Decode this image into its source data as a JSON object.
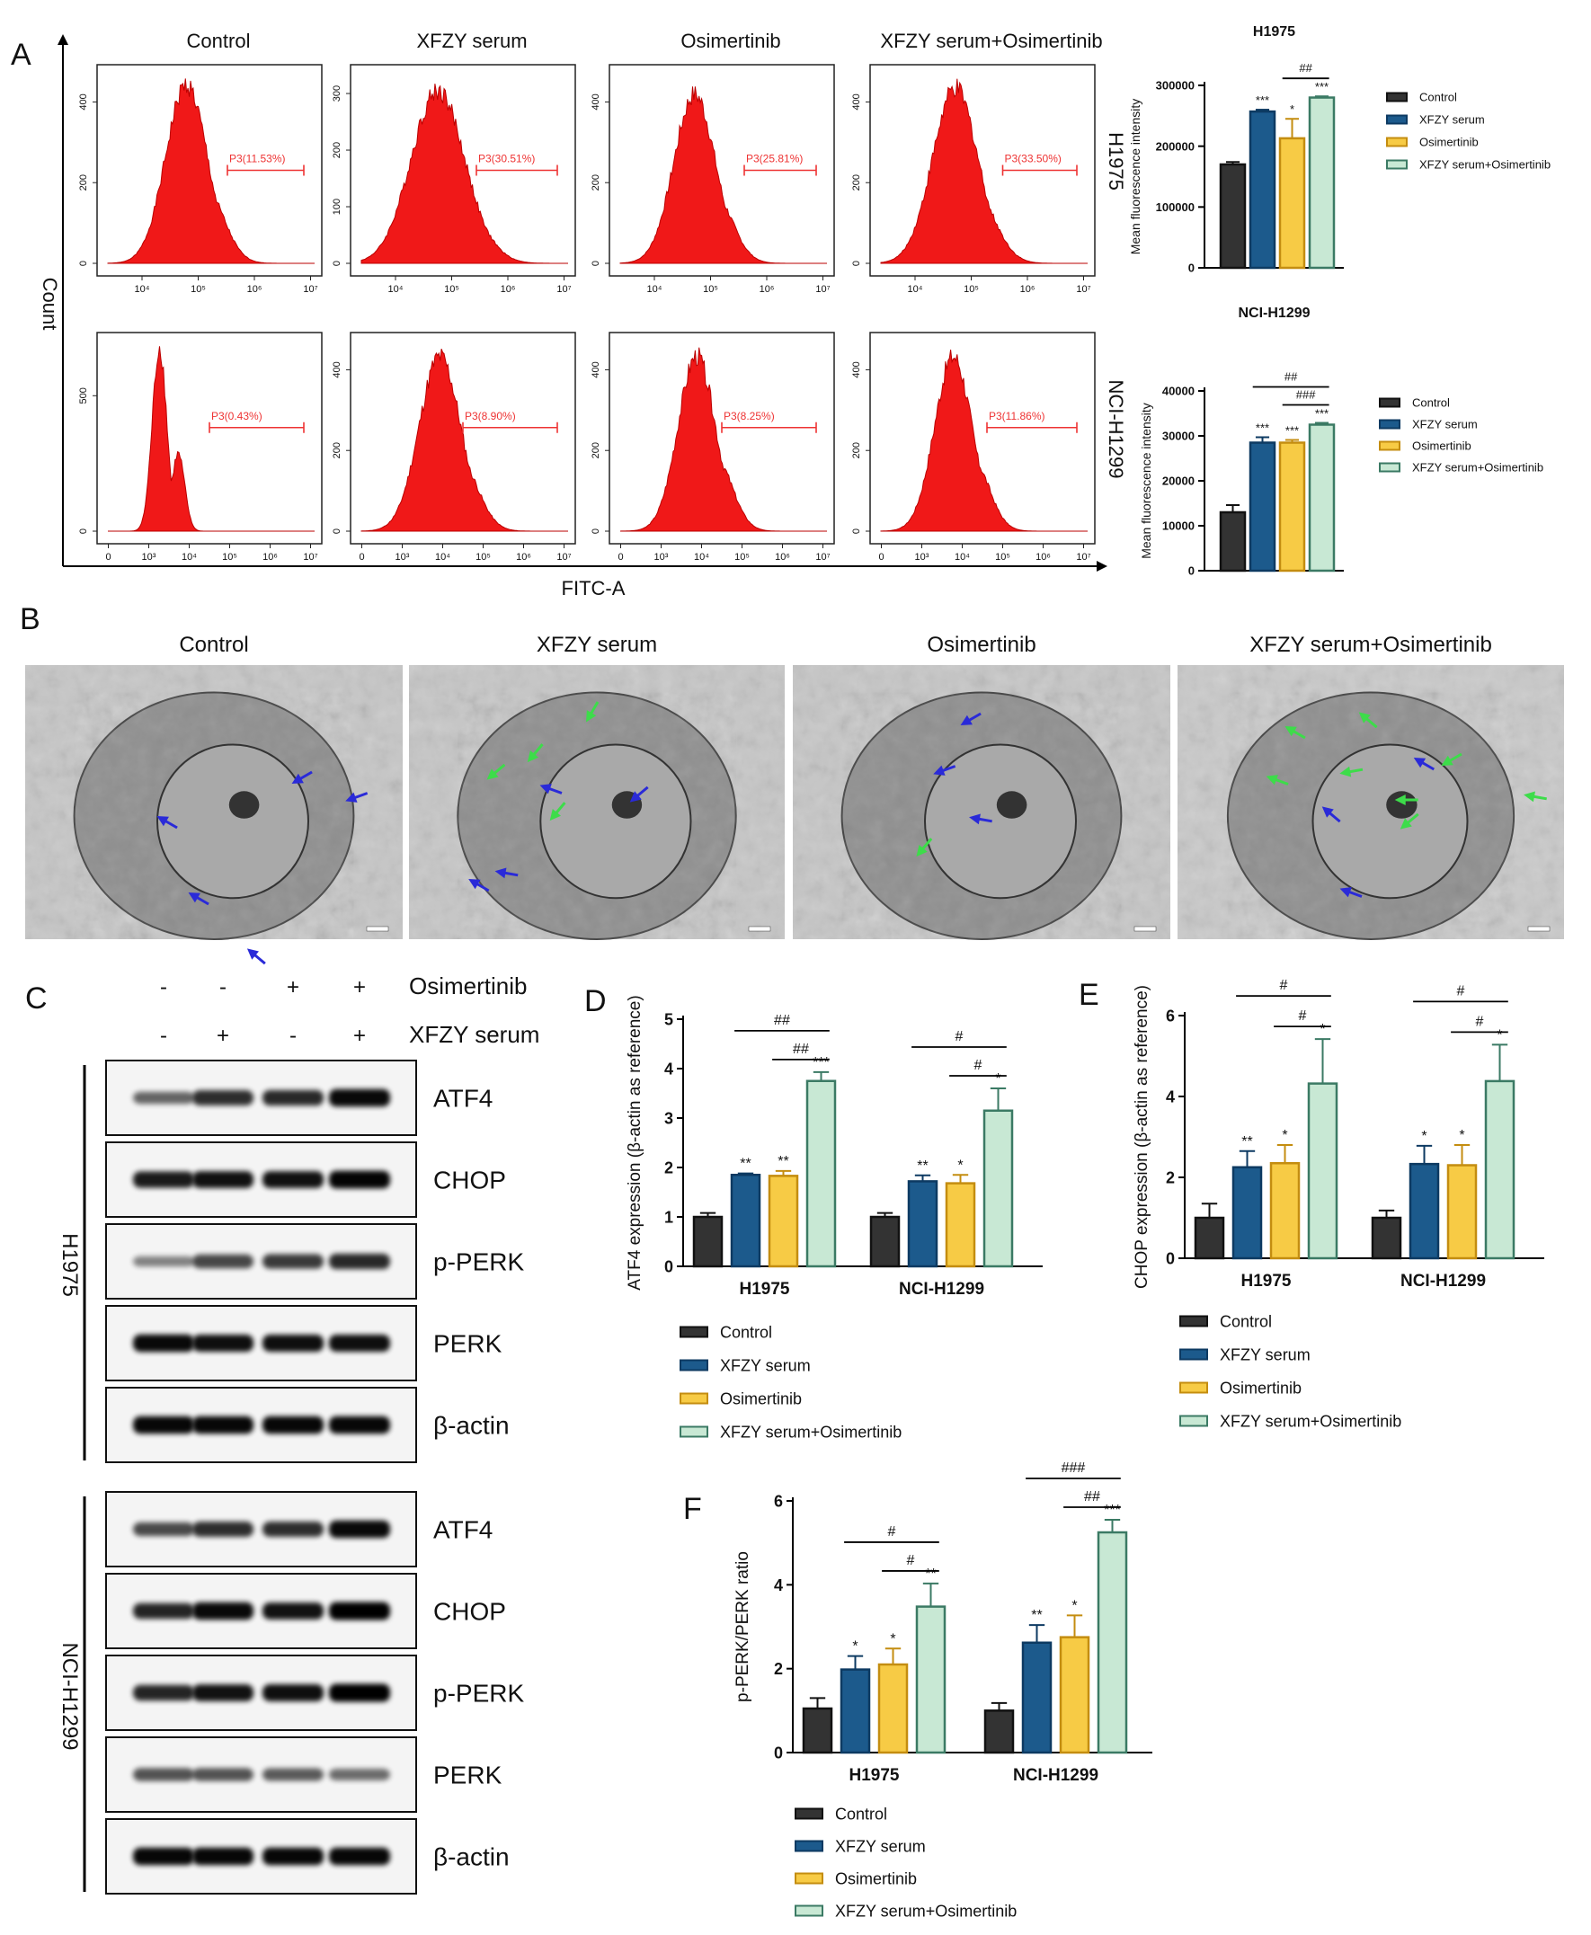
{
  "panel_letters": [
    "A",
    "B",
    "C",
    "D",
    "E",
    "F"
  ],
  "flow": {
    "conditions": [
      "Control",
      "XFZY serum",
      "Osimertinib",
      "XFZY serum+Osimertinib"
    ],
    "cell_lines": [
      "H1975",
      "NCI-H1299"
    ],
    "ylabel": "Count",
    "xlabel": "FITC-A",
    "gates": [
      [
        "P3(11.53%)",
        "P3(30.51%)",
        "P3(25.81%)",
        "P3(33.50%)"
      ],
      [
        "P3(0.43%)",
        "P3(8.90%)",
        "P3(8.25%)",
        "P3(11.86%)"
      ]
    ],
    "yticks": [
      [
        [
          "0",
          "200",
          "400"
        ],
        [
          "0",
          "100",
          "200",
          "300"
        ],
        [
          "0",
          "200",
          "400"
        ],
        [
          "0",
          "200",
          "400"
        ]
      ],
      [
        [
          "0",
          "500"
        ],
        [
          "0",
          "200",
          "400"
        ],
        [
          "0",
          "200",
          "400"
        ],
        [
          "0",
          "200",
          "400"
        ]
      ]
    ],
    "xticks_row1": [
      "10⁴",
      "10⁵",
      "10⁶",
      "10⁷"
    ],
    "xticks_row2": [
      "0",
      "10³",
      "10⁴",
      "10⁵",
      "10⁶",
      "10⁷"
    ],
    "hist_color": "#f01818"
  },
  "tem": {
    "titles": [
      "Control",
      "XFZY serum",
      "Osimertinib",
      "XFZY serum+Osimertinib"
    ],
    "arrow_blue": "#2a2ad8",
    "arrow_green": "#3ddc4a"
  },
  "blots": {
    "header_rows": [
      {
        "label": "Osimertinib",
        "signs": [
          "-",
          "-",
          "+",
          "+"
        ]
      },
      {
        "label": "XFZY serum",
        "signs": [
          "-",
          "+",
          "-",
          "+"
        ]
      }
    ],
    "groups": [
      {
        "name": "H1975",
        "bands": [
          "ATF4",
          "CHOP",
          "p-PERK",
          "PERK",
          "β-actin"
        ]
      },
      {
        "name": "NCI-H1299",
        "bands": [
          "ATF4",
          "CHOP",
          "p-PERK",
          "PERK",
          "β-actin"
        ]
      }
    ]
  },
  "palette": {
    "Control": "#333333",
    "XFZY serum": "#1c5a8c",
    "Osimertinib": "#f7cb45",
    "XFZY serum+Osimertinib": "#c8e8d4"
  },
  "palette_edge": {
    "Control": "#111111",
    "XFZY serum": "#0d3a62",
    "Osimertinib": "#c48d10",
    "XFZY serum+Osimertinib": "#3b7a64"
  },
  "chart_data": [
    {
      "id": "A-top",
      "type": "bar",
      "title": "H1975",
      "ylabel": "Mean fluorescence intensity",
      "ylim": [
        0,
        300000
      ],
      "yticks": [
        0,
        100000,
        200000,
        300000
      ],
      "categories": [
        "Control",
        "XFZY serum",
        "Osimertinib",
        "XFZY serum+Osimertinib"
      ],
      "values": [
        170000,
        257000,
        213000,
        280000
      ],
      "errors": [
        4000,
        3000,
        32000,
        2000
      ],
      "stars": [
        "",
        "***",
        "*",
        "***"
      ],
      "comparisons": [
        {
          "label": "##",
          "from": 2,
          "to": 3
        }
      ],
      "legend": [
        "Control",
        "XFZY serum",
        "Osimertinib",
        "XFZY serum+Osimertinib"
      ]
    },
    {
      "id": "A-bottom",
      "type": "bar",
      "title": "NCI-H1299",
      "ylabel": "Mean fluorescence intensity",
      "ylim": [
        0,
        40000
      ],
      "yticks": [
        0,
        10000,
        20000,
        30000,
        40000
      ],
      "categories": [
        "Control",
        "XFZY serum",
        "Osimertinib",
        "XFZY serum+Osimertinib"
      ],
      "values": [
        13000,
        28500,
        28500,
        32500
      ],
      "errors": [
        1600,
        1200,
        600,
        400
      ],
      "stars": [
        "",
        "***",
        "***",
        "***"
      ],
      "comparisons": [
        {
          "label": "##",
          "from": 1,
          "to": 3
        },
        {
          "label": "###",
          "from": 2,
          "to": 3
        }
      ],
      "legend": [
        "Control",
        "XFZY serum",
        "Osimertinib",
        "XFZY serum+Osimertinib"
      ]
    },
    {
      "id": "D",
      "type": "bar",
      "ylabel": "ATF4 expression (β-actin as reference)",
      "ylim": [
        0,
        5
      ],
      "yticks": [
        0,
        1,
        2,
        3,
        4,
        5
      ],
      "groups": [
        "H1975",
        "NCI-H1299"
      ],
      "series": [
        {
          "name": "Control",
          "values": [
            1.0,
            1.0
          ],
          "errors": [
            0.08,
            0.08
          ]
        },
        {
          "name": "XFZY serum",
          "values": [
            1.85,
            1.72
          ],
          "errors": [
            0.03,
            0.12
          ]
        },
        {
          "name": "Osimertinib",
          "values": [
            1.83,
            1.68
          ],
          "errors": [
            0.1,
            0.17
          ]
        },
        {
          "name": "XFZY serum+Osimertinib",
          "values": [
            3.75,
            3.15
          ],
          "errors": [
            0.18,
            0.45
          ]
        }
      ],
      "stars": [
        [
          "",
          "**",
          "**",
          "***"
        ],
        [
          "",
          "**",
          "*",
          "*"
        ]
      ],
      "comparisons": [
        [
          {
            "label": "##",
            "from": 1,
            "to": 3
          },
          {
            "label": "##",
            "from": 2,
            "to": 3
          }
        ],
        [
          {
            "label": "#",
            "from": 1,
            "to": 3
          },
          {
            "label": "#",
            "from": 2,
            "to": 3
          }
        ]
      ]
    },
    {
      "id": "E",
      "type": "bar",
      "ylabel": "CHOP expression (β-actin as reference)",
      "ylim": [
        0,
        6
      ],
      "yticks": [
        0,
        2,
        4,
        6
      ],
      "groups": [
        "H1975",
        "NCI-H1299"
      ],
      "series": [
        {
          "name": "Control",
          "values": [
            1.0,
            1.0
          ],
          "errors": [
            0.35,
            0.18
          ]
        },
        {
          "name": "XFZY serum",
          "values": [
            2.25,
            2.33
          ],
          "errors": [
            0.4,
            0.45
          ]
        },
        {
          "name": "Osimertinib",
          "values": [
            2.35,
            2.3
          ],
          "errors": [
            0.45,
            0.5
          ]
        },
        {
          "name": "XFZY serum+Osimertinib",
          "values": [
            4.32,
            4.38
          ],
          "errors": [
            1.1,
            0.9
          ]
        }
      ],
      "stars": [
        [
          "",
          "**",
          "*",
          "*"
        ],
        [
          "",
          "*",
          "*",
          "*"
        ]
      ],
      "comparisons": [
        [
          {
            "label": "#",
            "from": 1,
            "to": 3
          },
          {
            "label": "#",
            "from": 2,
            "to": 3
          }
        ],
        [
          {
            "label": "#",
            "from": 1,
            "to": 3
          },
          {
            "label": "#",
            "from": 2,
            "to": 3
          }
        ]
      ]
    },
    {
      "id": "F",
      "type": "bar",
      "ylabel": "p-PERK/PERK ratio",
      "ylim": [
        0,
        6
      ],
      "yticks": [
        0,
        2,
        4,
        6
      ],
      "groups": [
        "H1975",
        "NCI-H1299"
      ],
      "series": [
        {
          "name": "Control",
          "values": [
            1.05,
            1.0
          ],
          "errors": [
            0.25,
            0.18
          ]
        },
        {
          "name": "XFZY serum",
          "values": [
            1.98,
            2.62
          ],
          "errors": [
            0.32,
            0.42
          ]
        },
        {
          "name": "Osimertinib",
          "values": [
            2.1,
            2.75
          ],
          "errors": [
            0.38,
            0.52
          ]
        },
        {
          "name": "XFZY serum+Osimertinib",
          "values": [
            3.48,
            5.25
          ],
          "errors": [
            0.55,
            0.3
          ]
        }
      ],
      "stars": [
        [
          "",
          "*",
          "*",
          "**"
        ],
        [
          "",
          "**",
          "*",
          "***"
        ]
      ],
      "comparisons": [
        [
          {
            "label": "#",
            "from": 1,
            "to": 3
          },
          {
            "label": "#",
            "from": 2,
            "to": 3
          }
        ],
        [
          {
            "label": "###",
            "from": 1,
            "to": 3
          },
          {
            "label": "##",
            "from": 2,
            "to": 3
          }
        ]
      ]
    }
  ]
}
